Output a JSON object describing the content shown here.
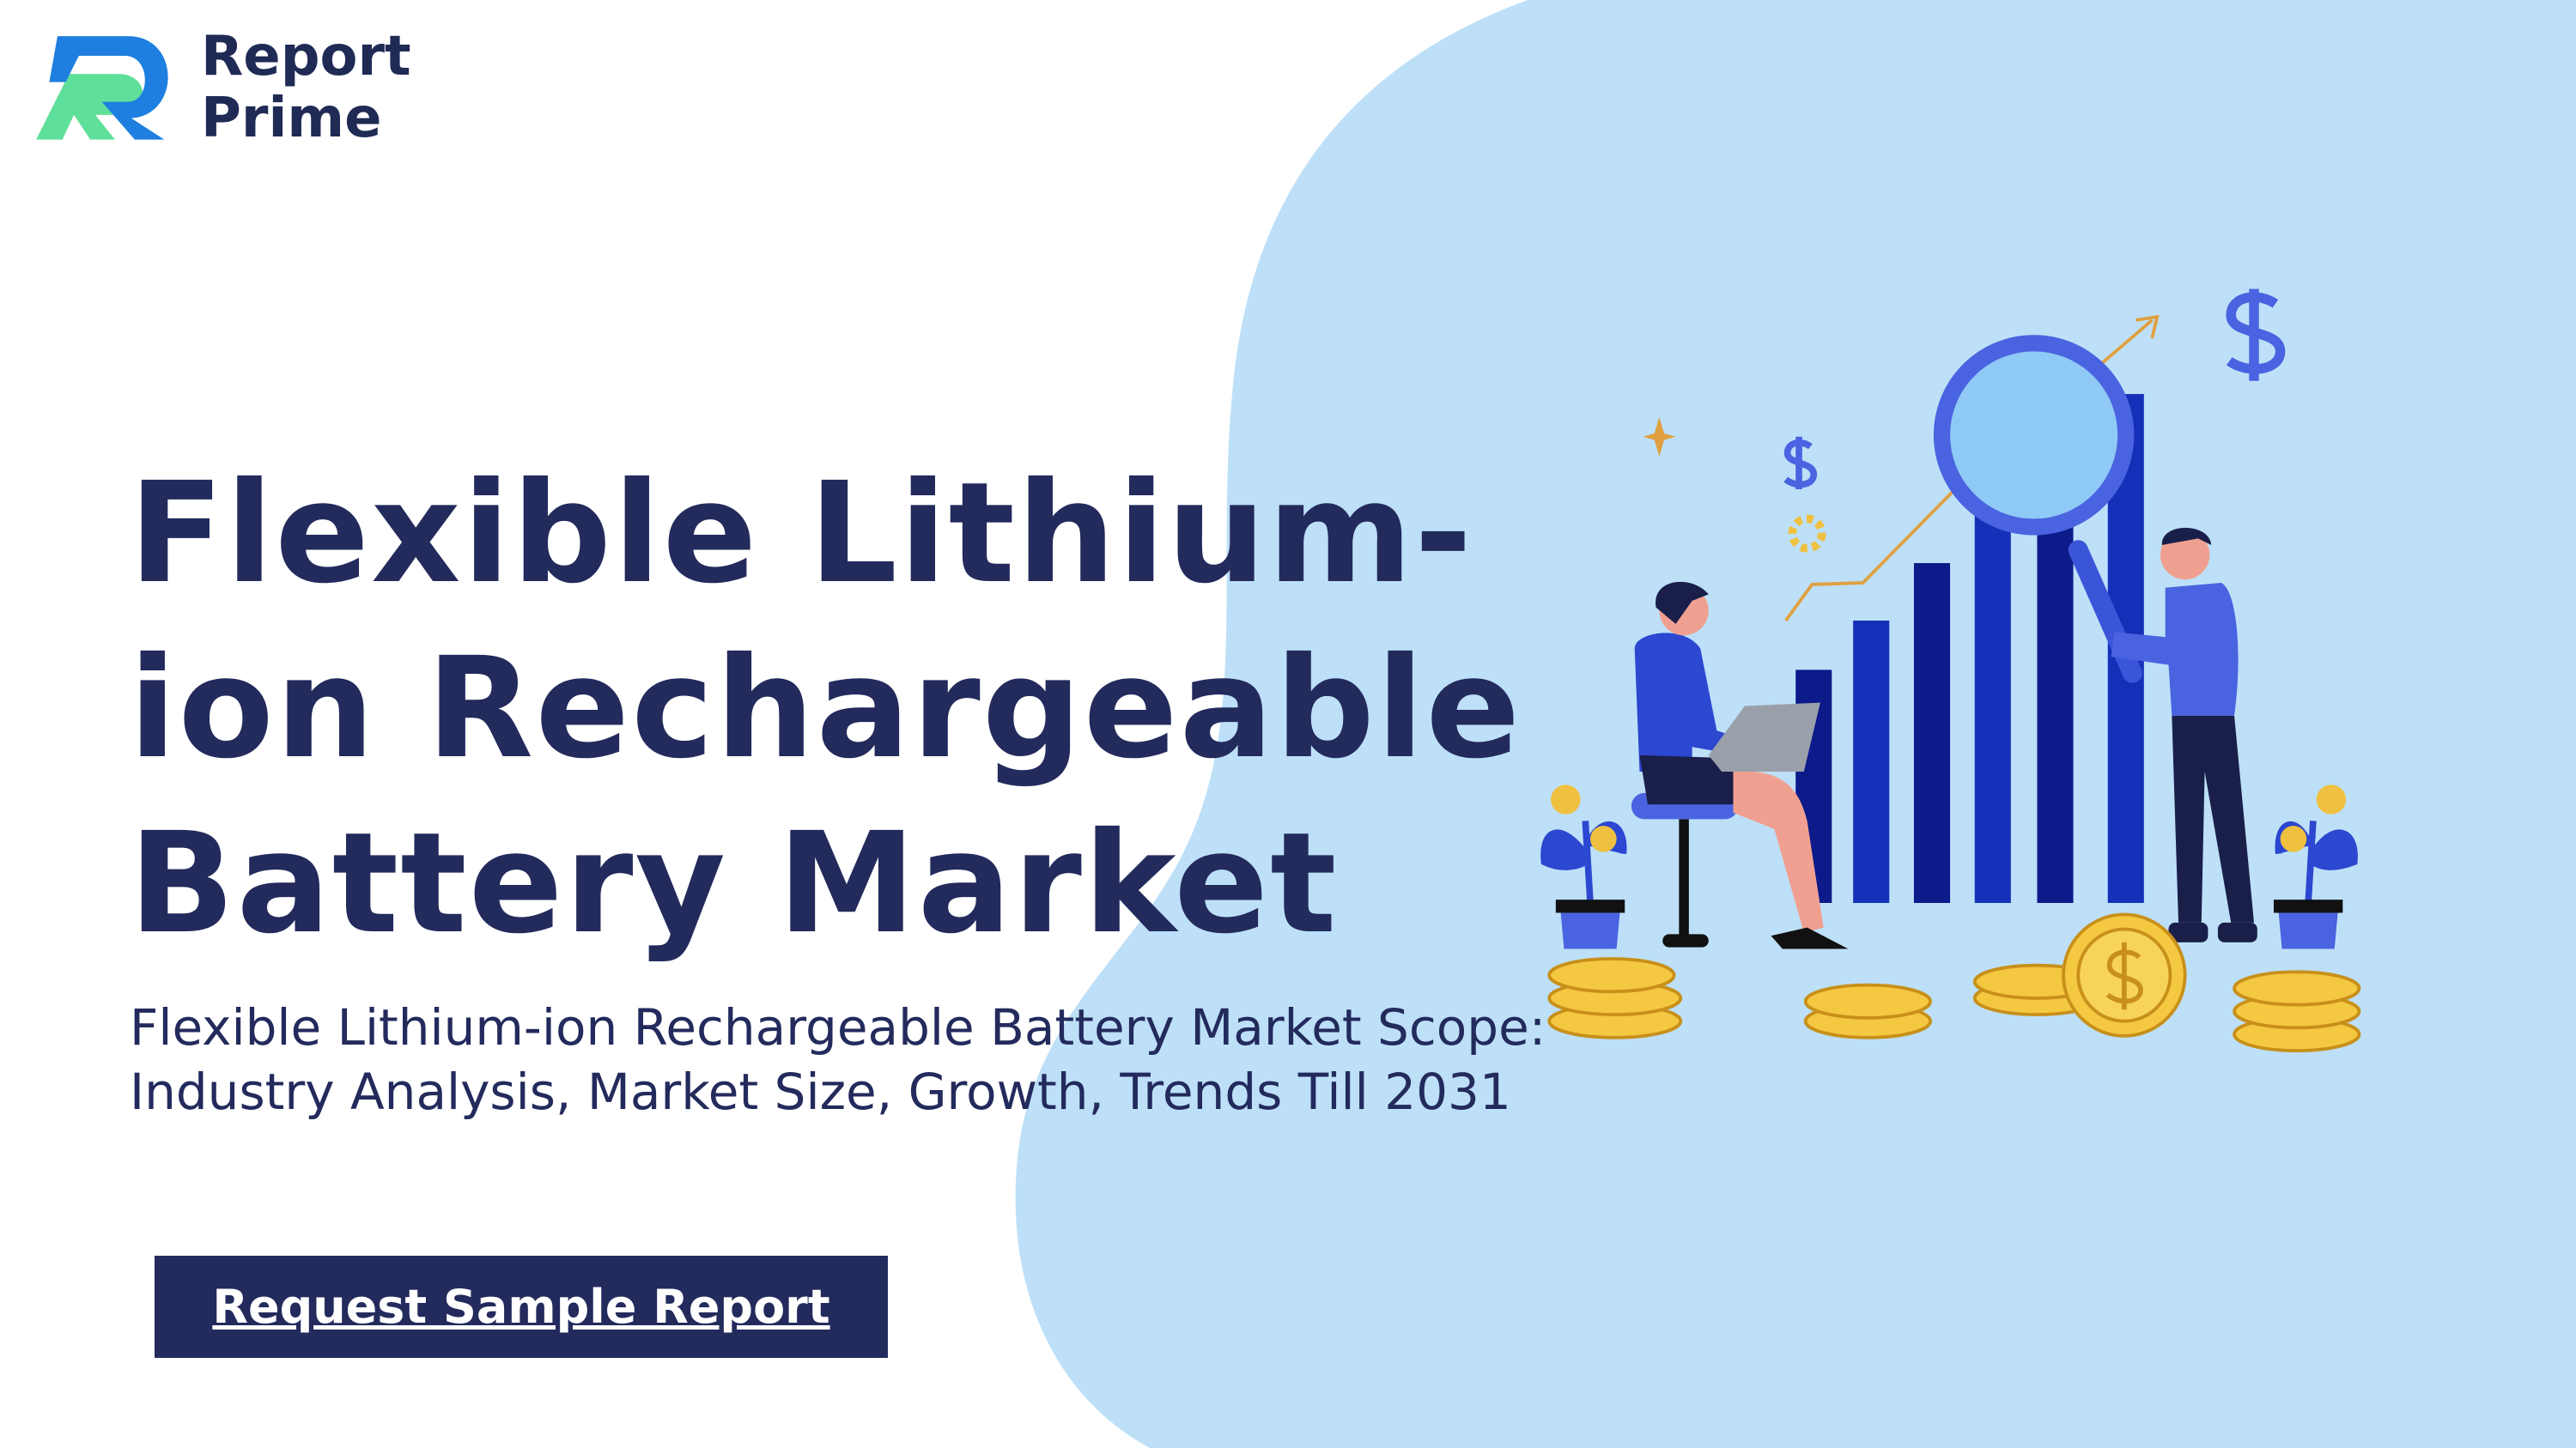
{
  "logo": {
    "line1": "Report",
    "line2": "Prime"
  },
  "title": "Flexible Lithium-ion Rechargeable Battery Market",
  "subtitle": "Flexible Lithium-ion Rechargeable Battery Market Scope: Industry Analysis, Market Size, Growth, Trends Till 2031",
  "button": "Request Sample Report"
}
